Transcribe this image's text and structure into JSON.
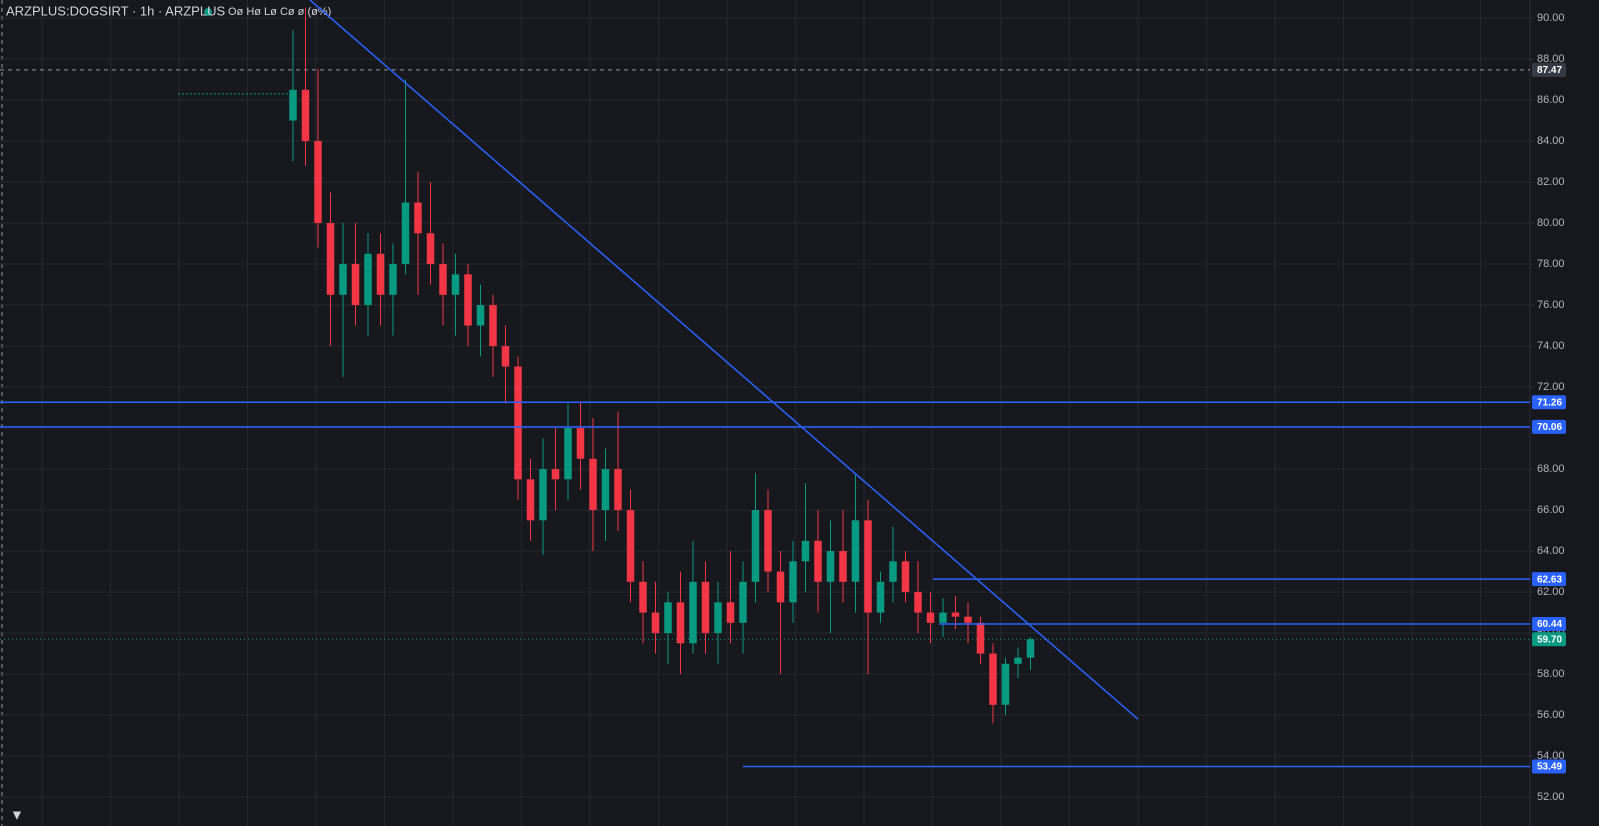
{
  "chart_data": {
    "type": "candlestick",
    "title": "ARZPLUS:DOGSIRT · 1h · ARZPLUS",
    "legend_text": "Oø Hø Lø Cø ø (ø%)",
    "up_color": "#089981",
    "down_color": "#f23645",
    "drawing_color": "#2962ff",
    "grid": true,
    "xlim": [
      -23.44,
      98.96
    ],
    "ylim": [
      50.59,
      90.88
    ],
    "yticks": [
      {
        "value": 52,
        "label": "52.00"
      },
      {
        "value": 54,
        "label": "54.00"
      },
      {
        "value": 56,
        "label": "56.00"
      },
      {
        "value": 58,
        "label": "58.00"
      },
      {
        "value": 60,
        "label": "60.00"
      },
      {
        "value": 62,
        "label": "62.00"
      },
      {
        "value": 64,
        "label": "64.00"
      },
      {
        "value": 66,
        "label": "66.00"
      },
      {
        "value": 68,
        "label": "68.00"
      },
      {
        "value": 70,
        "label": "70.00"
      },
      {
        "value": 72,
        "label": "72.00"
      },
      {
        "value": 74,
        "label": "74.00"
      },
      {
        "value": 76,
        "label": "76.00"
      },
      {
        "value": 78,
        "label": "78.00"
      },
      {
        "value": 80,
        "label": "80.00"
      },
      {
        "value": 82,
        "label": "82.00"
      },
      {
        "value": 84,
        "label": "84.00"
      },
      {
        "value": 86,
        "label": "86.00"
      },
      {
        "value": 88,
        "label": "88.00"
      },
      {
        "value": 90,
        "label": "90.00"
      }
    ],
    "candles": [
      [
        85.0,
        89.4,
        83.0,
        86.5
      ],
      [
        86.5,
        90.5,
        82.8,
        84.0
      ],
      [
        84.0,
        87.5,
        78.8,
        80.0
      ],
      [
        80.0,
        81.5,
        74.0,
        76.5
      ],
      [
        76.5,
        80.0,
        72.5,
        78.0
      ],
      [
        78.0,
        80.0,
        75.0,
        76.0
      ],
      [
        76.0,
        79.5,
        74.5,
        78.5
      ],
      [
        78.5,
        79.5,
        75.0,
        76.5
      ],
      [
        76.5,
        79.0,
        74.5,
        78.0
      ],
      [
        78.0,
        87.0,
        77.5,
        81.0
      ],
      [
        81.0,
        82.5,
        76.5,
        79.5
      ],
      [
        79.5,
        82.0,
        77.0,
        78.0
      ],
      [
        78.0,
        79.0,
        75.0,
        76.5
      ],
      [
        76.5,
        78.5,
        74.5,
        77.5
      ],
      [
        77.5,
        78.0,
        74.0,
        75.0
      ],
      [
        75.0,
        77.0,
        73.5,
        76.0
      ],
      [
        76.0,
        76.5,
        72.5,
        74.0
      ],
      [
        74.0,
        75.0,
        71.2,
        73.0
      ],
      [
        73.0,
        73.5,
        66.5,
        67.5
      ],
      [
        67.5,
        68.5,
        64.5,
        65.5
      ],
      [
        65.5,
        69.5,
        63.8,
        68.0
      ],
      [
        68.0,
        70.0,
        66.0,
        67.5
      ],
      [
        67.5,
        71.2,
        66.5,
        70.0
      ],
      [
        70.0,
        71.3,
        67.0,
        68.5
      ],
      [
        68.5,
        70.5,
        64.0,
        66.0
      ],
      [
        66.0,
        69.0,
        64.5,
        68.0
      ],
      [
        68.0,
        70.8,
        65.0,
        66.0
      ],
      [
        66.0,
        67.0,
        61.5,
        62.5
      ],
      [
        62.5,
        63.5,
        59.5,
        61.0
      ],
      [
        61.0,
        62.5,
        59.0,
        60.0
      ],
      [
        60.0,
        62.0,
        58.5,
        61.5
      ],
      [
        61.5,
        63.0,
        58.0,
        59.5
      ],
      [
        59.5,
        64.5,
        59.0,
        62.5
      ],
      [
        62.5,
        63.5,
        59.0,
        60.0
      ],
      [
        60.0,
        62.5,
        58.5,
        61.5
      ],
      [
        61.5,
        64.0,
        59.5,
        60.5
      ],
      [
        60.5,
        63.5,
        59.0,
        62.5
      ],
      [
        62.5,
        67.8,
        61.5,
        66.0
      ],
      [
        66.0,
        67.0,
        62.0,
        63.0
      ],
      [
        63.0,
        64.0,
        58.0,
        61.5
      ],
      [
        61.5,
        64.5,
        60.5,
        63.5
      ],
      [
        63.5,
        67.3,
        62.0,
        64.5
      ],
      [
        64.5,
        66.0,
        61.0,
        62.5
      ],
      [
        62.5,
        65.5,
        60.0,
        64.0
      ],
      [
        64.0,
        66.0,
        61.5,
        62.5
      ],
      [
        62.5,
        67.8,
        61.0,
        65.5
      ],
      [
        65.5,
        66.5,
        58.0,
        61.0
      ],
      [
        61.0,
        63.0,
        60.5,
        62.5
      ],
      [
        62.5,
        65.2,
        61.5,
        63.5
      ],
      [
        63.5,
        64.0,
        61.5,
        62.0
      ],
      [
        62.0,
        63.5,
        60.0,
        61.0
      ],
      [
        61.0,
        62.0,
        59.5,
        60.5
      ],
      [
        60.5,
        61.7,
        59.8,
        61.0
      ],
      [
        61.0,
        61.8,
        60.2,
        60.8
      ],
      [
        60.8,
        61.5,
        59.5,
        60.5
      ],
      [
        60.5,
        60.8,
        58.5,
        59.0
      ],
      [
        59.0,
        59.5,
        55.6,
        56.5
      ],
      [
        56.5,
        58.8,
        56.0,
        58.5
      ],
      [
        58.5,
        59.3,
        57.8,
        58.8
      ],
      [
        58.8,
        59.8,
        58.2,
        59.7
      ]
    ],
    "horizontal_lines": [
      {
        "value": 71.26,
        "start": -23.44
      },
      {
        "value": 70.06,
        "start": -23.44
      },
      {
        "value": 62.63,
        "start": 51.2
      },
      {
        "value": 60.44,
        "start": 51.7
      },
      {
        "value": 53.49,
        "start": 36.0
      }
    ],
    "trend_line": {
      "x": [
        1.36,
        67.6
      ],
      "y": [
        90.88,
        55.8
      ]
    },
    "marker_line": {
      "value": 86.3,
      "x": [
        -9.2,
        0
      ]
    },
    "crosshair": {
      "value": 87.47
    },
    "last_price": {
      "value": 59.7,
      "label": "59.70"
    }
  }
}
